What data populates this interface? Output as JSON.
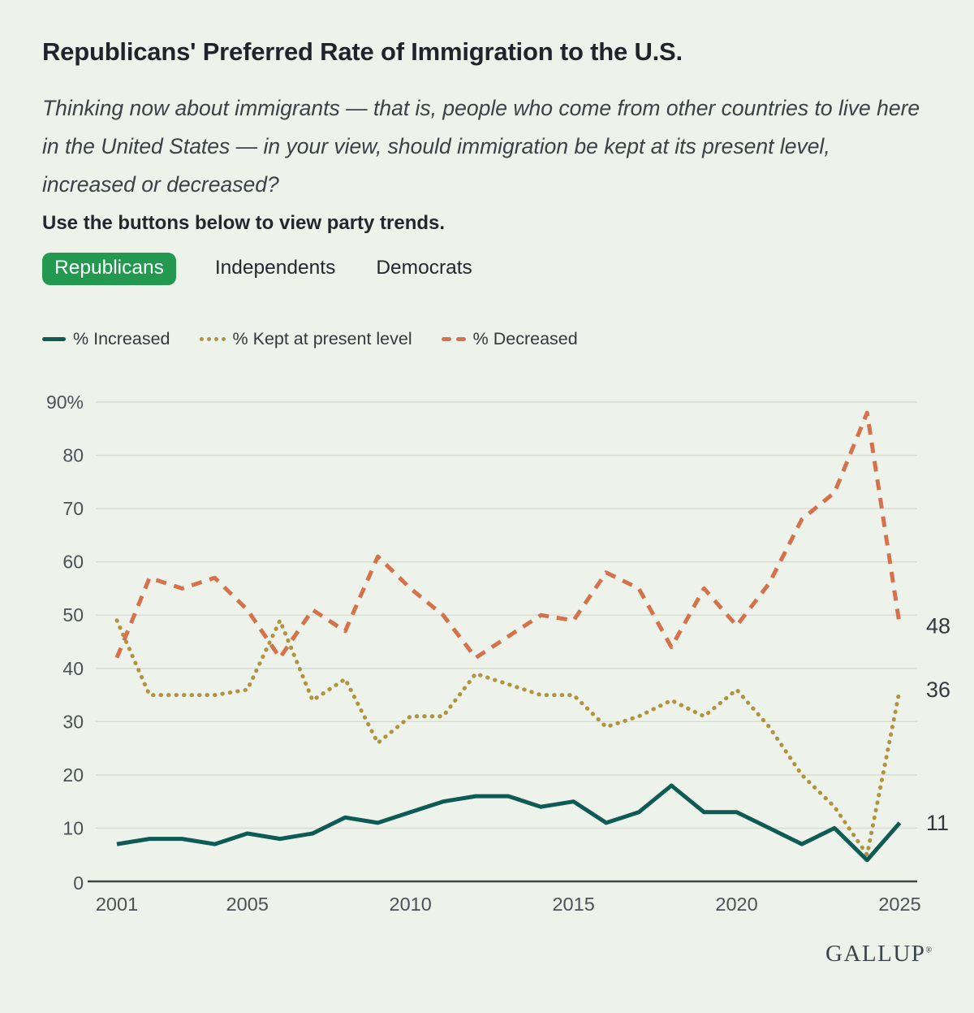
{
  "header": {
    "title": "Republicans' Preferred Rate of Immigration to the U.S.",
    "question": "Thinking now about immigrants — that is, people who come from other countries to live here in the United States — in your view, should immigration be kept at its present level, increased or decreased?",
    "instruction": "Use the buttons below to view party trends."
  },
  "party_tabs": [
    {
      "label": "Republicans",
      "selected": true
    },
    {
      "label": "Independents",
      "selected": false
    },
    {
      "label": "Democrats",
      "selected": false
    }
  ],
  "colors": {
    "increased": "#0e5a54",
    "kept": "#b09440",
    "decreased": "#d4724c",
    "selected_tab_bg": "#22994e",
    "selected_tab_text": "#ffffff",
    "background": "#edf2ea",
    "grid": "#d7dcd2",
    "axis": "#3c4540",
    "tick_text": "#4a5258",
    "end_label_text": "#33393f"
  },
  "chart_data": {
    "type": "line",
    "title": "Republicans' Preferred Rate of Immigration to the U.S.",
    "x": [
      2001,
      2002,
      2003,
      2004,
      2005,
      2006,
      2007,
      2008,
      2009,
      2010,
      2011,
      2012,
      2013,
      2014,
      2015,
      2016,
      2017,
      2018,
      2019,
      2020,
      2021,
      2022,
      2023,
      2024,
      2025
    ],
    "series": [
      {
        "id": "increased",
        "name": "% Increased",
        "line_style": "solid",
        "values": [
          7,
          8,
          8,
          7,
          9,
          8,
          9,
          12,
          11,
          13,
          15,
          16,
          16,
          14,
          15,
          11,
          13,
          18,
          13,
          13,
          10,
          7,
          10,
          4,
          11
        ]
      },
      {
        "id": "kept",
        "name": "% Kept at present level",
        "line_style": "dotted",
        "values": [
          49,
          35,
          35,
          35,
          36,
          49,
          34,
          38,
          26,
          31,
          31,
          39,
          37,
          35,
          35,
          29,
          31,
          34,
          31,
          36,
          29,
          20,
          14,
          5,
          36
        ]
      },
      {
        "id": "decreased",
        "name": "% Decreased",
        "line_style": "dashed",
        "values": [
          42,
          57,
          55,
          57,
          51,
          42,
          51,
          47,
          61,
          55,
          50,
          42,
          46,
          50,
          49,
          58,
          55,
          44,
          55,
          48,
          56,
          68,
          73,
          88,
          48
        ]
      }
    ],
    "ylim": [
      0,
      90
    ],
    "yticks": [
      0,
      10,
      20,
      30,
      40,
      50,
      60,
      70,
      80,
      90
    ],
    "ytick_labels": [
      "0",
      "10",
      "20",
      "30",
      "40",
      "50",
      "60",
      "70",
      "80",
      "90%"
    ],
    "xticks": [
      2001,
      2005,
      2010,
      2015,
      2020,
      2025
    ],
    "end_labels": [
      {
        "series": "decreased",
        "text": "48",
        "value": 48
      },
      {
        "series": "kept",
        "text": "36",
        "value": 36
      },
      {
        "series": "increased",
        "text": "11",
        "value": 11
      }
    ],
    "grid": true,
    "legend_position": "top"
  },
  "footer": {
    "brand": "GALLUP",
    "registered": "®"
  }
}
